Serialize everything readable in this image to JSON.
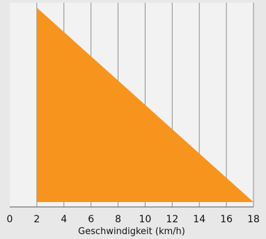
{
  "chart_data": {
    "type": "area",
    "title": "",
    "xlabel": "Geschwindigkeit (km/h)",
    "ylabel": "",
    "xlim": [
      0,
      18
    ],
    "ylim": [
      0,
      1
    ],
    "xticks": [
      0,
      2,
      4,
      6,
      8,
      10,
      12,
      14,
      16,
      18
    ],
    "xtick_labels": [
      "0",
      "2",
      "4",
      "6",
      "8",
      "10",
      "12",
      "14",
      "16",
      "18"
    ],
    "grid": "vertical",
    "series": [
      {
        "x": [
          2,
          18
        ],
        "y": [
          1,
          0
        ]
      }
    ],
    "colors": {
      "background": "#e8e8e8",
      "plot_area": "#f2f2f2",
      "fill": "#f7941e",
      "grid": "#8c8c8c",
      "axis": "#555555",
      "text": "#111111"
    }
  }
}
